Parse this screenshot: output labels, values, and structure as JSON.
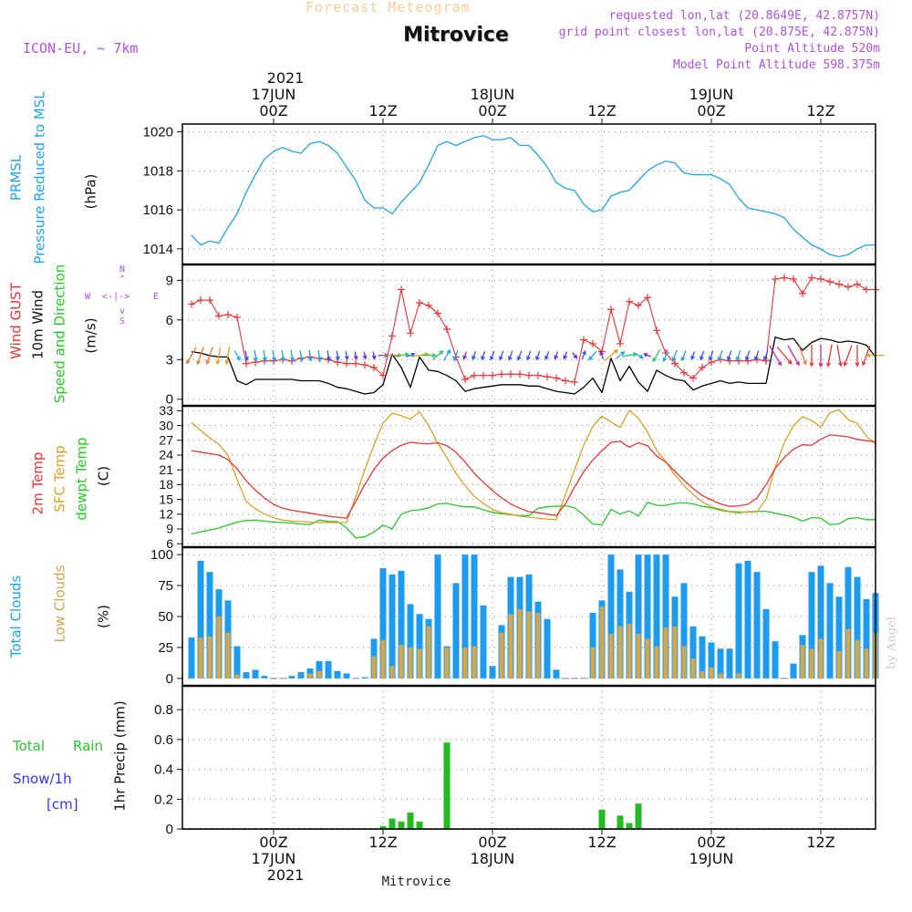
{
  "header": {
    "supertitle": "Forecast Meteogram",
    "title": "Mitrovice",
    "model": "ICON-EU, ~ 7km",
    "requested": "requested lon,lat (20.8649E, 42.8757N)",
    "grid": "grid point closest lon,lat (20.875E, 42.875N)",
    "altitude": "Point Altitude 520m",
    "model_altitude": "Model Point Altitude 598.375m"
  },
  "time_axis": {
    "top_year": "2021",
    "bottom_year": "2021",
    "ticks": [
      {
        "t": 9,
        "line1": "",
        "line2": "17JUN",
        "line3": "00Z"
      },
      {
        "t": 21,
        "line1": "",
        "line2": "",
        "line3": "12Z"
      },
      {
        "t": 33,
        "line1": "",
        "line2": "18JUN",
        "line3": "00Z"
      },
      {
        "t": 45,
        "line1": "",
        "line2": "",
        "line3": "12Z"
      },
      {
        "t": 57,
        "line1": "",
        "line2": "19JUN",
        "line3": "00Z"
      },
      {
        "t": 69,
        "line1": "",
        "line2": "",
        "line3": "12Z"
      }
    ],
    "bottom_ticks": [
      {
        "t": 9,
        "line1": "00Z",
        "line2": "17JUN"
      },
      {
        "t": 21,
        "line1": "12Z",
        "line2": ""
      },
      {
        "t": 33,
        "line1": "00Z",
        "line2": "18JUN"
      },
      {
        "t": 45,
        "line1": "12Z",
        "line2": ""
      },
      {
        "t": 57,
        "line1": "00Z",
        "line2": "19JUN"
      },
      {
        "t": 69,
        "line1": "12Z",
        "line2": ""
      }
    ],
    "footer": "Mitrovice"
  },
  "labels": {
    "prmsl_a": "PRMSL",
    "prmsl_b": "Pressure Reduced to MSL",
    "prmsl_unit": "(hPa)",
    "wind_gust": "Wind GUST",
    "wind_10m": "10m Wind",
    "wind_dir": "Speed and Direction",
    "wind_unit": "(m/s)",
    "compass_n": "N",
    "compass_s": "S",
    "compass_w": "W",
    "compass_e": "E",
    "compass_we": "<-|->",
    "compass_ns_up": "^",
    "compass_ns_dn": "v",
    "temp_2m": "2m Temp",
    "temp_sfc": "SFC Temp",
    "temp_dew": "dewpt Temp",
    "temp_unit": "(C)",
    "clouds_total": "Total Clouds",
    "clouds_low": "Low Clouds",
    "clouds_unit": "(%)",
    "precip_axis": "1hr Precip (mm)",
    "rain_a": "Total",
    "rain_b": "Rain",
    "snow": "Snow/1h",
    "snow_unit": "[cm]",
    "watermark": "by Angel"
  },
  "colors": {
    "prmsl": "#1aa6ee",
    "gust": "#ee3333",
    "wind10": "#000000",
    "temp2m": "#ee3333",
    "sfc": "#e0a020",
    "dew": "#22cc22",
    "total_clouds": "#1b9cf0",
    "low_clouds": "#d4a74a",
    "rain": "#22bb22",
    "snow": "#3333ee",
    "purple": "#b44ee8"
  },
  "chart_data": [
    {
      "type": "line",
      "title": "PRMSL",
      "ylabel": "(hPa)",
      "ylim": [
        1013.2,
        1020.4
      ],
      "yticks": [
        1014,
        1016,
        1018,
        1020
      ],
      "x_hours_from_start": "0..75",
      "series": [
        {
          "name": "PRMSL",
          "values": [
            1014.7,
            1014.2,
            1014.4,
            1014.3,
            1015.1,
            1015.8,
            1016.9,
            1017.8,
            1018.6,
            1019.0,
            1019.2,
            1019.0,
            1018.9,
            1019.4,
            1019.5,
            1019.3,
            1018.9,
            1018.2,
            1017.5,
            1016.5,
            1016.1,
            1016.1,
            1015.8,
            1016.4,
            1016.9,
            1017.4,
            1018.3,
            1019.3,
            1019.5,
            1019.3,
            1019.5,
            1019.7,
            1019.8,
            1019.6,
            1019.6,
            1019.7,
            1019.3,
            1019.3,
            1018.8,
            1018.2,
            1017.4,
            1017.1,
            1017.0,
            1016.3,
            1015.9,
            1016.0,
            1016.7,
            1016.9,
            1017.0,
            1017.5,
            1018.0,
            1018.3,
            1018.5,
            1018.4,
            1017.9,
            1017.8,
            1017.8,
            1017.8,
            1017.6,
            1017.3,
            1016.6,
            1016.1,
            1016.0,
            1015.9,
            1015.8,
            1015.6,
            1015.0,
            1014.6,
            1014.2,
            1014.0,
            1013.7,
            1013.6,
            1013.7,
            1014.0,
            1014.2,
            1014.2
          ]
        }
      ]
    },
    {
      "type": "line",
      "title": "Wind",
      "ylabel": "(m/s)",
      "ylim": [
        -0.5,
        10.2
      ],
      "yticks": [
        0,
        3,
        6,
        9
      ],
      "series": [
        {
          "name": "Wind GUST",
          "values": [
            7.2,
            7.5,
            7.5,
            6.3,
            6.4,
            6.2,
            2.7,
            2.8,
            2.9,
            2.9,
            3.0,
            2.9,
            3.1,
            3.2,
            3.1,
            3.0,
            2.8,
            2.7,
            2.7,
            2.6,
            2.4,
            1.8,
            4.8,
            8.3,
            5.0,
            7.3,
            7.1,
            6.5,
            5.3,
            3.2,
            1.5,
            1.8,
            1.8,
            1.8,
            1.9,
            1.9,
            1.9,
            1.8,
            1.8,
            1.7,
            1.6,
            1.4,
            1.3,
            4.5,
            4.2,
            3.6,
            6.8,
            4.2,
            7.4,
            7.1,
            7.7,
            5.2,
            3.5,
            2.7,
            2.0,
            1.6,
            2.4,
            2.8,
            3.0,
            2.9,
            2.9,
            2.9,
            3.0,
            2.9,
            9.1,
            9.2,
            9.1,
            8.0,
            9.2,
            9.1,
            8.9,
            8.7,
            8.5,
            8.7,
            8.3,
            8.3
          ]
        },
        {
          "name": "10m Wind",
          "values": [
            3.6,
            3.5,
            3.3,
            3.2,
            3.2,
            1.4,
            1.1,
            1.5,
            1.5,
            1.5,
            1.5,
            1.5,
            1.4,
            1.4,
            1.4,
            1.2,
            0.9,
            0.8,
            0.6,
            0.4,
            0.5,
            1.1,
            3.4,
            2.4,
            0.9,
            3.2,
            2.2,
            2.1,
            1.8,
            1.4,
            0.6,
            0.8,
            0.9,
            1.0,
            1.1,
            1.1,
            1.1,
            1.0,
            1.0,
            0.8,
            0.6,
            0.5,
            0.4,
            0.9,
            1.6,
            0.5,
            3.1,
            1.4,
            2.5,
            1.3,
            0.6,
            2.2,
            1.8,
            1.5,
            1.4,
            0.7,
            1.0,
            1.2,
            1.4,
            1.2,
            1.3,
            1.2,
            1.2,
            1.2,
            4.7,
            4.5,
            4.6,
            3.7,
            4.3,
            4.6,
            4.5,
            4.3,
            4.4,
            4.3,
            4.1,
            3.2
          ]
        }
      ]
    },
    {
      "type": "line",
      "title": "Temperature",
      "ylabel": "(C)",
      "ylim": [
        5.3,
        34.0
      ],
      "yticks": [
        6,
        9,
        12,
        15,
        18,
        21,
        24,
        27,
        30,
        33
      ],
      "series": [
        {
          "name": "2m Temp",
          "values": [
            24.9,
            24.6,
            24.3,
            24.0,
            23.1,
            21.2,
            18.8,
            16.9,
            15.3,
            14.0,
            13.2,
            12.8,
            12.5,
            12.2,
            11.9,
            11.6,
            11.4,
            11.2,
            14.6,
            18.0,
            21.1,
            23.4,
            24.9,
            26.0,
            26.6,
            26.4,
            26.3,
            26.5,
            25.9,
            24.6,
            22.6,
            20.3,
            18.5,
            16.8,
            15.3,
            14.1,
            13.2,
            12.5,
            12.3,
            12.0,
            11.7,
            14.1,
            17.5,
            20.6,
            23.0,
            24.9,
            26.6,
            26.8,
            25.6,
            26.5,
            25.9,
            23.8,
            22.6,
            20.7,
            18.9,
            17.2,
            15.8,
            14.9,
            14.1,
            13.6,
            13.7,
            14.0,
            15.3,
            18.0,
            21.3,
            23.5,
            25.2,
            26.1,
            26.0,
            27.2,
            28.1,
            27.9,
            27.7,
            27.2,
            26.9,
            26.7
          ]
        },
        {
          "name": "SFC Temp",
          "values": [
            30.6,
            29.0,
            27.5,
            26.2,
            24.0,
            19.0,
            14.6,
            13.1,
            12.0,
            11.3,
            10.8,
            10.6,
            10.5,
            10.4,
            10.3,
            10.3,
            10.3,
            10.3,
            15.5,
            21.0,
            26.0,
            30.5,
            32.5,
            32.0,
            31.3,
            32.8,
            30.0,
            26.4,
            23.5,
            20.3,
            17.8,
            15.6,
            14.2,
            13.0,
            12.3,
            12.0,
            11.6,
            11.4,
            11.2,
            11.0,
            10.9,
            16.0,
            21.0,
            26.0,
            29.8,
            31.9,
            30.7,
            29.6,
            33.1,
            31.5,
            28.7,
            25.0,
            22.7,
            20.0,
            17.8,
            16.0,
            14.5,
            13.5,
            13.0,
            12.6,
            12.5,
            12.4,
            12.5,
            15.0,
            21.5,
            26.5,
            30.0,
            31.8,
            31.0,
            29.7,
            32.6,
            33.2,
            31.2,
            30.4,
            27.8,
            26.3
          ]
        },
        {
          "name": "dewpt Temp",
          "values": [
            8.0,
            8.4,
            8.8,
            9.2,
            9.8,
            10.4,
            10.7,
            10.8,
            10.6,
            10.4,
            10.3,
            10.2,
            10.0,
            9.9,
            10.8,
            10.5,
            10.5,
            9.2,
            7.2,
            7.4,
            8.4,
            9.8,
            9.0,
            12.0,
            12.7,
            12.9,
            13.3,
            14.1,
            14.2,
            13.8,
            13.5,
            13.5,
            12.9,
            12.4,
            12.1,
            11.9,
            11.7,
            11.7,
            13.2,
            13.5,
            13.6,
            13.7,
            13.3,
            11.8,
            10.0,
            9.8,
            13.0,
            12.0,
            12.7,
            11.6,
            14.4,
            13.8,
            13.8,
            14.2,
            14.3,
            14.1,
            13.6,
            13.3,
            12.8,
            12.5,
            12.3,
            12.5,
            12.6,
            12.6,
            12.2,
            11.8,
            11.4,
            10.6,
            11.3,
            11.2,
            9.9,
            10.0,
            11.1,
            11.3,
            10.9,
            10.9
          ]
        }
      ]
    },
    {
      "type": "bar",
      "title": "Clouds",
      "ylabel": "(%)",
      "ylim": [
        -6,
        106
      ],
      "yticks": [
        0,
        25,
        50,
        75,
        100
      ],
      "series": [
        {
          "name": "Total Clouds",
          "values": [
            33,
            95,
            86,
            72,
            63,
            26,
            5,
            7,
            2,
            0,
            0,
            2,
            5,
            8,
            14,
            14,
            6,
            4,
            0,
            1,
            32,
            89,
            84,
            87,
            60,
            52,
            48,
            100,
            26,
            77,
            100,
            100,
            59,
            10,
            43,
            82,
            82,
            84,
            62,
            48,
            7,
            0,
            0,
            0,
            53,
            63,
            100,
            88,
            70,
            100,
            100,
            100,
            100,
            66,
            77,
            42,
            34,
            29,
            24,
            24,
            93,
            95,
            86,
            56,
            30,
            0,
            12,
            35,
            86,
            91,
            77,
            66,
            90,
            82,
            64,
            69
          ]
        },
        {
          "name": "Low Clouds",
          "values": [
            0,
            33,
            34,
            50,
            37,
            3,
            0,
            0,
            0,
            0,
            0,
            0,
            0,
            4,
            6,
            0,
            0,
            0,
            0,
            0,
            18,
            31,
            10,
            27,
            25,
            24,
            42,
            0,
            25,
            0,
            25,
            26,
            0,
            0,
            37,
            52,
            56,
            54,
            53,
            0,
            0,
            0,
            0,
            0,
            25,
            58,
            36,
            42,
            44,
            36,
            32,
            26,
            41,
            42,
            26,
            16,
            6,
            9,
            4,
            0,
            4,
            0,
            0,
            0,
            0,
            0,
            0,
            27,
            24,
            32,
            0,
            22,
            40,
            31,
            24,
            37
          ]
        }
      ]
    },
    {
      "type": "bar",
      "title": "1hr Precip",
      "ylabel": "1hr Precip (mm)",
      "ylim": [
        0,
        0.96
      ],
      "yticks": [
        0,
        0.2,
        0.4,
        0.6,
        0.8
      ],
      "series": [
        {
          "name": "Total Rain",
          "values": [
            0,
            0,
            0,
            0,
            0,
            0,
            0,
            0,
            0,
            0,
            0,
            0,
            0,
            0,
            0,
            0,
            0,
            0,
            0,
            0,
            0,
            0.02,
            0.07,
            0.05,
            0.11,
            0.05,
            0,
            0,
            0.58,
            0,
            0,
            0,
            0,
            0,
            0,
            0,
            0,
            0,
            0,
            0,
            0,
            0,
            0,
            0,
            0,
            0.13,
            0,
            0.09,
            0.04,
            0.17,
            0,
            0,
            0,
            0,
            0,
            0,
            0,
            0,
            0,
            0,
            0,
            0,
            0,
            0,
            0,
            0,
            0,
            0,
            0,
            0,
            0,
            0,
            0,
            0,
            0,
            0
          ]
        },
        {
          "name": "Snow/1h",
          "values": [
            0,
            0,
            0,
            0,
            0,
            0,
            0,
            0,
            0,
            0,
            0,
            0,
            0,
            0,
            0,
            0,
            0,
            0,
            0,
            0,
            0,
            0,
            0,
            0,
            0,
            0,
            0,
            0,
            0,
            0,
            0,
            0,
            0,
            0,
            0,
            0,
            0,
            0,
            0,
            0,
            0,
            0,
            0,
            0,
            0,
            0,
            0,
            0,
            0,
            0,
            0,
            0,
            0,
            0,
            0,
            0,
            0,
            0,
            0,
            0,
            0,
            0,
            0,
            0,
            0,
            0,
            0,
            0,
            0,
            0,
            0,
            0,
            0,
            0,
            0,
            0
          ]
        }
      ]
    }
  ],
  "wind_arrows": {
    "series_name": "10m Wind direction (deg, blowing from)",
    "directions": [
      30,
      20,
      20,
      10,
      10,
      330,
      350,
      350,
      350,
      350,
      350,
      350,
      350,
      350,
      350,
      350,
      350,
      350,
      350,
      350,
      350,
      270,
      270,
      260,
      250,
      260,
      270,
      230,
      210,
      20,
      20,
      20,
      20,
      20,
      20,
      20,
      20,
      20,
      20,
      20,
      20,
      20,
      320,
      200,
      40,
      160,
      230,
      230,
      260,
      300,
      110,
      30,
      20,
      20,
      20,
      20,
      20,
      20,
      20,
      20,
      20,
      20,
      20,
      20,
      330,
      320,
      330,
      340,
      0,
      0,
      10,
      350,
      20,
      0,
      20,
      90
    ],
    "palette": [
      "#6a2cd8",
      "#3355ee",
      "#1aa6ee",
      "#22cc66",
      "#e0a020",
      "#ee7733",
      "#ee3333",
      "#cc22aa"
    ]
  }
}
